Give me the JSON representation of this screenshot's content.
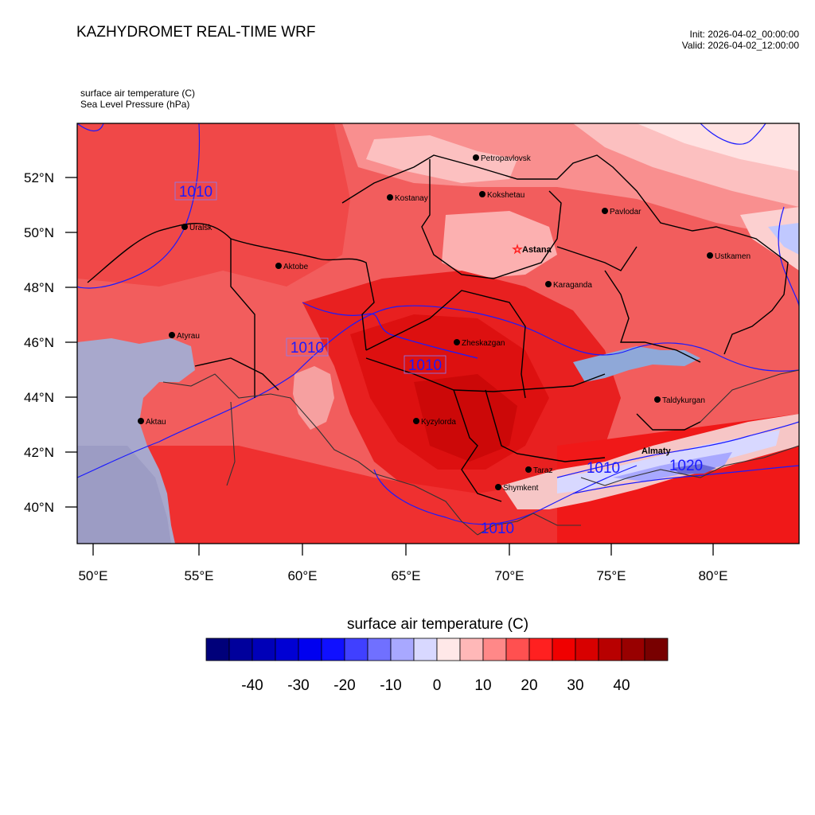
{
  "header": {
    "title": "KAZHYDROMET REAL-TIME WRF",
    "init": "Init: 2026-04-02_00:00:00",
    "valid": "Valid: 2026-04-02_12:00:00"
  },
  "variables": {
    "primary": "surface air temperature   (C)",
    "secondary": "Sea Level Pressure   (hPa)"
  },
  "map": {
    "lon_ticks": [
      "50°E",
      "55°E",
      "60°E",
      "65°E",
      "70°E",
      "75°E",
      "80°E"
    ],
    "lat_ticks": [
      "52°N",
      "50°N",
      "48°N",
      "46°N",
      "44°N",
      "42°N",
      "40°N"
    ],
    "isobar_labels": [
      "1010",
      "1010",
      "1010",
      "1010",
      "1010",
      "1020"
    ],
    "cities": [
      {
        "name": "Petropavlovsk",
        "bold": false
      },
      {
        "name": "Kostanay",
        "bold": false
      },
      {
        "name": "Kokshetau",
        "bold": false
      },
      {
        "name": "Pavlodar",
        "bold": false
      },
      {
        "name": "Uralsk",
        "bold": false
      },
      {
        "name": "Astana",
        "bold": true
      },
      {
        "name": "Ustkamen",
        "bold": false
      },
      {
        "name": "Aktobe",
        "bold": false
      },
      {
        "name": "Karaganda",
        "bold": false
      },
      {
        "name": "Atyrau",
        "bold": false
      },
      {
        "name": "Zheskazgan",
        "bold": false
      },
      {
        "name": "Taldykurgan",
        "bold": false
      },
      {
        "name": "Aktau",
        "bold": false
      },
      {
        "name": "Kyzylorda",
        "bold": false
      },
      {
        "name": "Almaty",
        "bold": true
      },
      {
        "name": "Taraz",
        "bold": false
      },
      {
        "name": "Shymkent",
        "bold": false
      }
    ]
  },
  "colorbar": {
    "title": "surface air temperature  (C)",
    "tick_labels": [
      "-40",
      "-30",
      "-20",
      "-10",
      "0",
      "10",
      "20",
      "30",
      "40"
    ],
    "colors": [
      "#00007a",
      "#00009c",
      "#0000b8",
      "#0000d4",
      "#0000f0",
      "#1010ff",
      "#4040ff",
      "#7070ff",
      "#a8a8ff",
      "#d8d8ff",
      "#ffe8e8",
      "#ffb8b8",
      "#ff8888",
      "#ff5050",
      "#ff2020",
      "#f00000",
      "#d80000",
      "#b80000",
      "#980000",
      "#780000"
    ]
  }
}
